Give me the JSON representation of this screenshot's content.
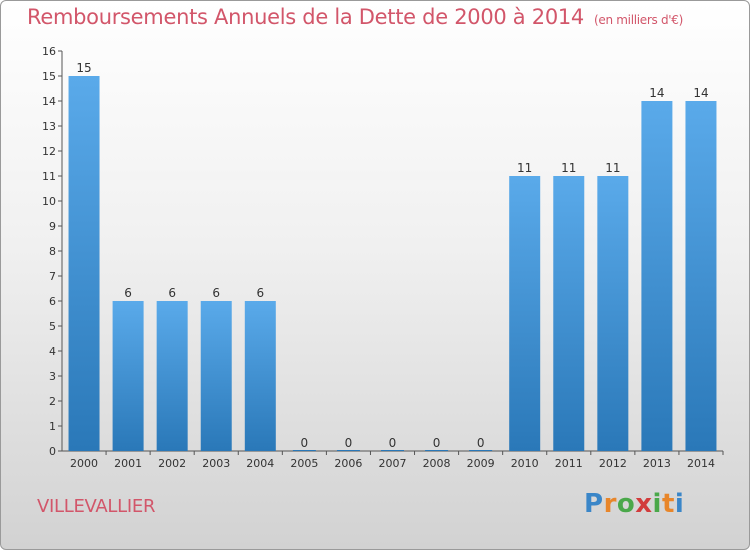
{
  "page": {
    "commune": "VILLEVALLIER",
    "logo": "Proxiti"
  },
  "colors": {
    "title": "#d2566a",
    "bar_light": "#5aaaea",
    "bar_dark": "#2a78b8"
  },
  "chart_data": {
    "type": "bar",
    "title": "Remboursements Annuels de la Dette de 2000 à 2014",
    "subtitle": "(en milliers d'€)",
    "xlabel": "",
    "ylabel": "",
    "ylim": [
      0,
      16
    ],
    "yticks": [
      0,
      1,
      2,
      3,
      4,
      5,
      6,
      7,
      8,
      9,
      10,
      11,
      12,
      13,
      14,
      15,
      16
    ],
    "grid": false,
    "categories": [
      "2000",
      "2001",
      "2002",
      "2003",
      "2004",
      "2005",
      "2006",
      "2007",
      "2008",
      "2009",
      "2010",
      "2011",
      "2012",
      "2013",
      "2014"
    ],
    "values": [
      15,
      6,
      6,
      6,
      6,
      0,
      0,
      0,
      0,
      0,
      11,
      11,
      11,
      14,
      14
    ]
  }
}
